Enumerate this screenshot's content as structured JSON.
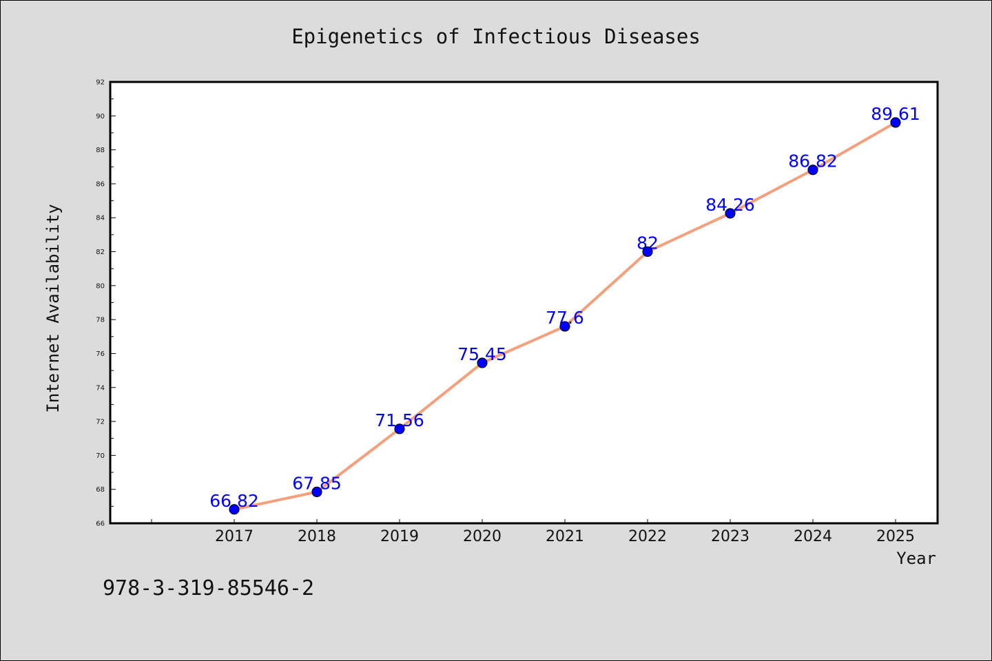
{
  "chart_data": {
    "type": "line",
    "title": "Epigenetics of Infectious Diseases",
    "xlabel": "Year",
    "ylabel": "Internet Availability",
    "categories": [
      "2017",
      "2018",
      "2019",
      "2020",
      "2021",
      "2022",
      "2023",
      "2024",
      "2025"
    ],
    "series": [
      {
        "values": [
          66.82,
          67.85,
          71.56,
          75.45,
          77.6,
          82,
          84.26,
          86.82,
          89.61
        ],
        "labels": [
          "66.82",
          "67.85",
          "71.56",
          "75.45",
          "77.6",
          "82",
          "84.26",
          "86.82",
          "89.61"
        ],
        "line_color": "#f4a07c",
        "marker_color": "#0000ff"
      }
    ],
    "ylim": [
      66,
      92
    ],
    "yticks": [
      "66",
      "68",
      "70",
      "72",
      "74",
      "76",
      "78",
      "80",
      "82",
      "84",
      "86",
      "88",
      "90",
      "92"
    ],
    "grid": false,
    "legend": "none"
  },
  "footer": {
    "isbn": "978-3-319-85546-2"
  },
  "colors": {
    "background": "#dcdcdc",
    "plot_area": "#ffffff",
    "line": "#f4a07c",
    "marker": "#0000ff",
    "data_label": "#0000ff"
  }
}
